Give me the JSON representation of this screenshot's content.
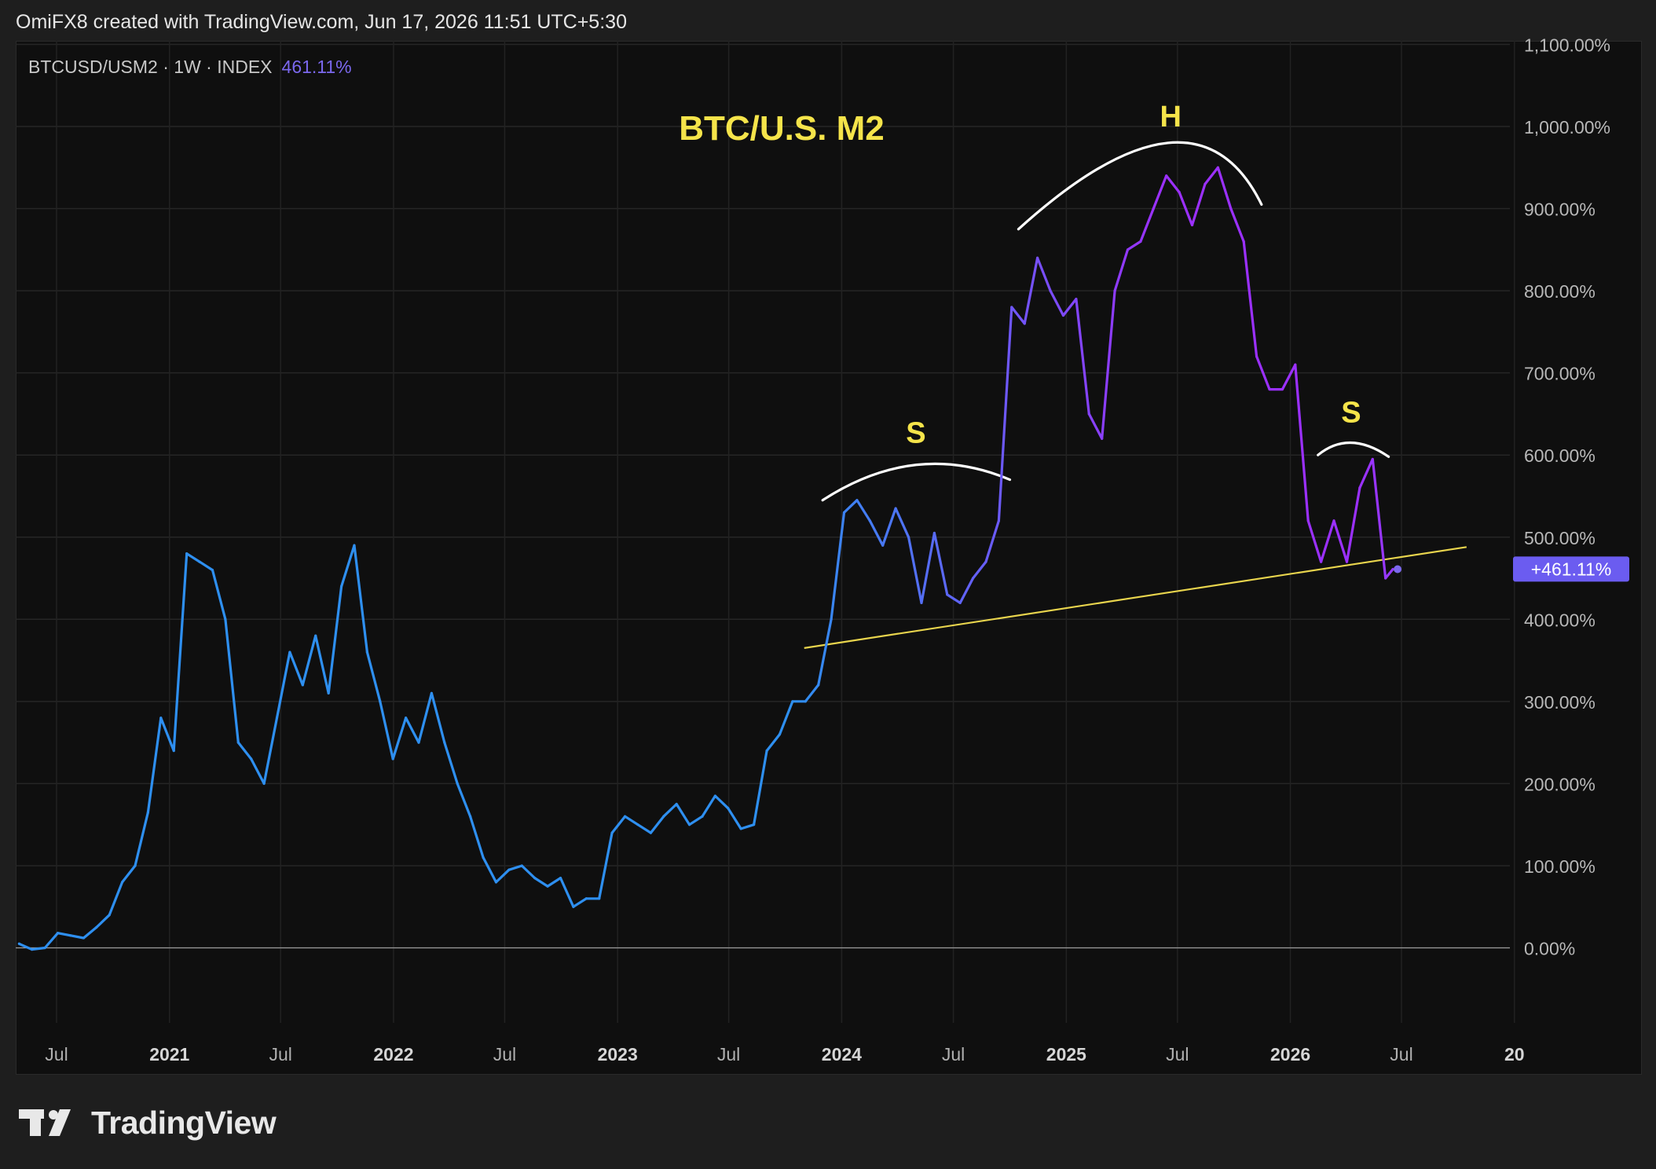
{
  "header": {
    "credit": "OmiFX8 created with TradingView.com, Jun 17, 2026 11:51 UTC+5:30"
  },
  "legend": {
    "symbol": "BTCUSD/USM2 · 1W · INDEX",
    "value": "461.11%"
  },
  "footer": {
    "brand": "TradingView"
  },
  "colors": {
    "line_start": "#2e8ff0",
    "line_mid": "#7b68ee",
    "line_peak": "#9b30ff",
    "trendline": "#e8d44d",
    "annotation_text": "#f5e44a",
    "arc": "#ffffff",
    "badge": "#6b5cf0"
  },
  "chart_data": {
    "type": "line",
    "title": "BTC/U.S. M2",
    "series": [
      {
        "name": "BTCUSD/USM2",
        "x": [
          "2020-05-01",
          "2020-05-22",
          "2020-06-12",
          "2020-07-03",
          "2020-07-24",
          "2020-08-14",
          "2020-09-04",
          "2020-09-25",
          "2020-10-16",
          "2020-11-06",
          "2020-11-27",
          "2020-12-18",
          "2021-01-08",
          "2021-01-29",
          "2021-02-19",
          "2021-03-12",
          "2021-04-02",
          "2021-04-23",
          "2021-05-14",
          "2021-06-04",
          "2021-06-25",
          "2021-07-16",
          "2021-08-06",
          "2021-08-27",
          "2021-09-17",
          "2021-10-08",
          "2021-10-29",
          "2021-11-19",
          "2021-12-10",
          "2021-12-31",
          "2022-01-21",
          "2022-02-11",
          "2022-03-04",
          "2022-03-25",
          "2022-04-15",
          "2022-05-06",
          "2022-05-27",
          "2022-06-17",
          "2022-07-08",
          "2022-07-29",
          "2022-08-19",
          "2022-09-09",
          "2022-09-30",
          "2022-10-21",
          "2022-11-11",
          "2022-12-02",
          "2022-12-23",
          "2023-01-13",
          "2023-02-03",
          "2023-02-24",
          "2023-03-17",
          "2023-04-07",
          "2023-04-28",
          "2023-05-19",
          "2023-06-09",
          "2023-06-30",
          "2023-07-21",
          "2023-08-11",
          "2023-09-01",
          "2023-09-22",
          "2023-10-13",
          "2023-11-03",
          "2023-11-24",
          "2023-12-15",
          "2024-01-05",
          "2024-01-26",
          "2024-02-16",
          "2024-03-08",
          "2024-03-29",
          "2024-04-19",
          "2024-05-10",
          "2024-05-31",
          "2024-06-21",
          "2024-07-12",
          "2024-08-02",
          "2024-08-23",
          "2024-09-13",
          "2024-10-04",
          "2024-10-25",
          "2024-11-15",
          "2024-12-06",
          "2024-12-27",
          "2025-01-17",
          "2025-02-07",
          "2025-02-28",
          "2025-03-21",
          "2025-04-11",
          "2025-05-02",
          "2025-05-23",
          "2025-06-13",
          "2025-07-04",
          "2025-07-25",
          "2025-08-15",
          "2025-09-05",
          "2025-09-26",
          "2025-10-17",
          "2025-11-07",
          "2025-11-28",
          "2025-12-19",
          "2026-01-09",
          "2026-01-30",
          "2026-02-20",
          "2026-03-13",
          "2026-04-03",
          "2026-04-24",
          "2026-05-15",
          "2026-06-05",
          "2026-06-17"
        ],
        "values": [
          5,
          -2,
          0,
          18,
          15,
          12,
          25,
          40,
          80,
          100,
          165,
          280,
          240,
          480,
          470,
          460,
          400,
          250,
          230,
          200,
          280,
          360,
          320,
          380,
          310,
          440,
          490,
          360,
          300,
          230,
          280,
          250,
          310,
          250,
          200,
          160,
          110,
          80,
          95,
          100,
          85,
          75,
          85,
          50,
          60,
          60,
          140,
          160,
          150,
          140,
          160,
          175,
          150,
          160,
          185,
          170,
          145,
          150,
          240,
          260,
          300,
          300,
          320,
          400,
          530,
          545,
          520,
          490,
          535,
          500,
          420,
          505,
          430,
          420,
          450,
          470,
          520,
          780,
          760,
          840,
          800,
          770,
          790,
          650,
          620,
          800,
          850,
          860,
          900,
          940,
          920,
          880,
          930,
          950,
          900,
          860,
          720,
          680,
          680,
          710,
          520,
          470,
          520,
          470,
          560,
          595,
          450,
          461
        ]
      }
    ],
    "ylim": [
      -100,
      1100
    ],
    "y_ticks": [
      "1,100.00%",
      "1,000.00%",
      "900.00%",
      "800.00%",
      "700.00%",
      "600.00%",
      "500.00%",
      "400.00%",
      "300.00%",
      "200.00%",
      "100.00%",
      "0.00%"
    ],
    "x_ticks": [
      "Jul",
      "2021",
      "Jul",
      "2022",
      "Jul",
      "2023",
      "Jul",
      "2024",
      "Jul",
      "2025",
      "Jul",
      "2026",
      "Jul",
      "20"
    ],
    "annotations": [
      {
        "type": "label",
        "text": "S",
        "x": "2024-05-01",
        "y": 615
      },
      {
        "type": "label",
        "text": "H",
        "x": "2025-06-20",
        "y": 1000
      },
      {
        "type": "label",
        "text": "S",
        "x": "2026-04-10",
        "y": 640
      },
      {
        "type": "trendline",
        "x": [
          "2023-11-01",
          "2026-10-15"
        ],
        "y": [
          365,
          488
        ]
      },
      {
        "type": "arc",
        "x": [
          "2023-12-01",
          "2024-05-01",
          "2024-10-01"
        ],
        "y": [
          545,
          588,
          570
        ]
      },
      {
        "type": "arc",
        "x": [
          "2024-10-15",
          "2025-06-15",
          "2025-11-15"
        ],
        "y": [
          875,
          980,
          905
        ]
      },
      {
        "type": "arc",
        "x": [
          "2026-02-15",
          "2026-04-10",
          "2026-06-10"
        ],
        "y": [
          600,
          615,
          598
        ]
      }
    ],
    "last_value_badge": "+461.11%",
    "grid": true,
    "zero_line": true
  }
}
